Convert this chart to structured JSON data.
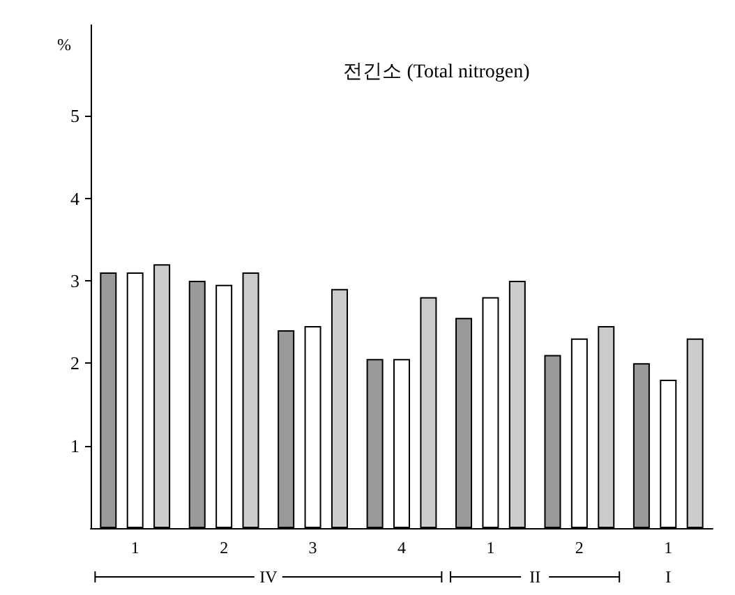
{
  "chart_data": {
    "type": "bar",
    "title": "전긴소 (Total nitrogen)",
    "ylabel": "%",
    "categories": [
      "1",
      "2",
      "3",
      "4",
      "1",
      "2",
      "1"
    ],
    "series": [
      {
        "color": "#9a9a9a",
        "values": [
          3.1,
          3.0,
          2.4,
          2.05,
          2.55,
          2.1,
          2.0
        ]
      },
      {
        "color": "#ffffff",
        "values": [
          3.1,
          2.95,
          2.45,
          2.05,
          2.8,
          2.3,
          1.8
        ]
      },
      {
        "color": "#cccccc",
        "values": [
          3.2,
          3.1,
          2.9,
          2.8,
          3.0,
          2.45,
          2.3
        ]
      }
    ],
    "ylim": [
      0,
      6.1
    ],
    "yticks": [
      1,
      2,
      3,
      4,
      5
    ],
    "grid": false,
    "annotations": [
      "IV",
      "II",
      "I"
    ]
  }
}
